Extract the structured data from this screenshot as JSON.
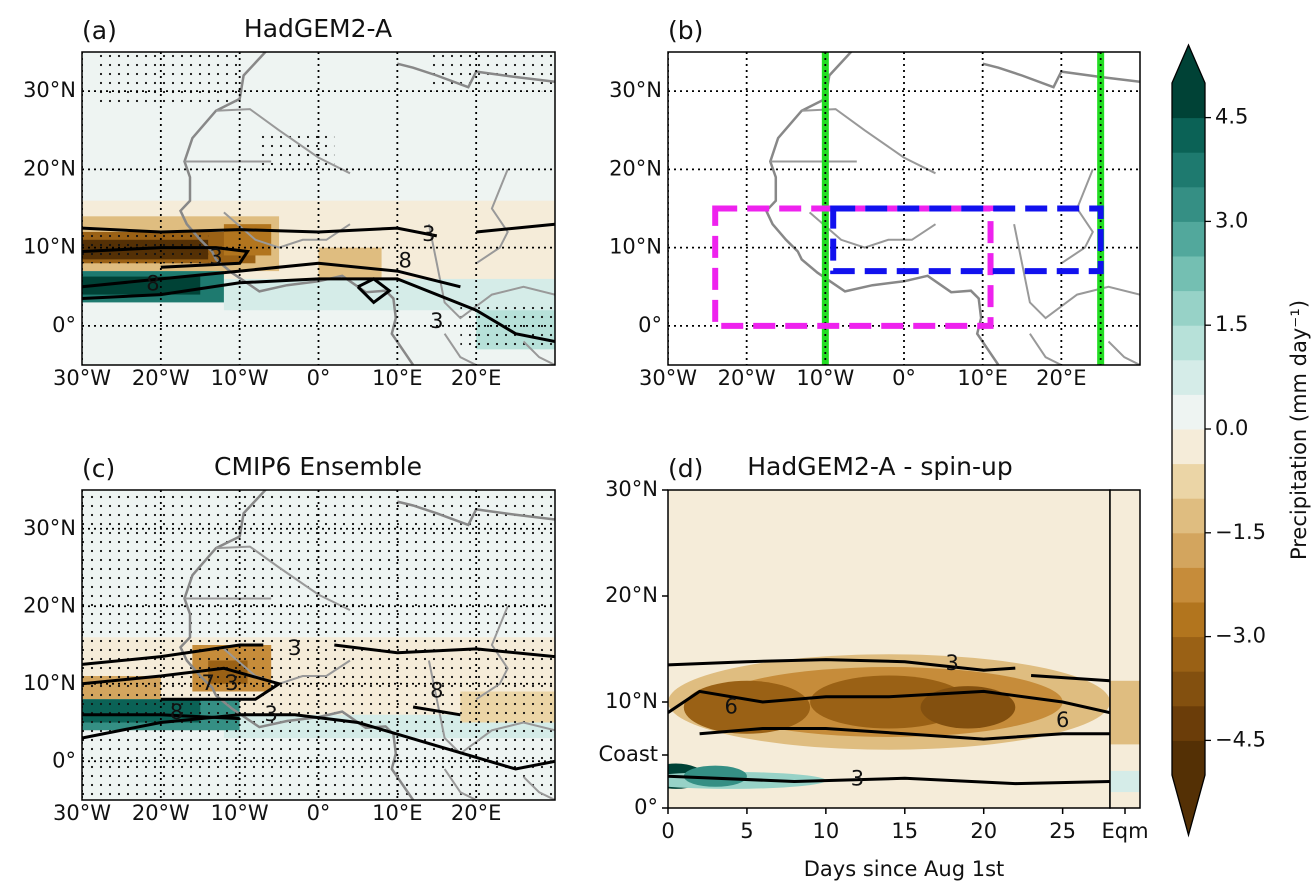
{
  "panels": [
    {
      "letter": "(a)",
      "title": "HadGEM2-A",
      "grid": true,
      "xlim": [
        -30,
        30
      ],
      "ylim": [
        -5,
        35
      ],
      "xticks": [
        {
          "value": -30,
          "label": "30°W"
        },
        {
          "value": -20,
          "label": "20°W"
        },
        {
          "value": -10,
          "label": "10°W"
        },
        {
          "value": 0,
          "label": "0°"
        },
        {
          "value": 10,
          "label": "10°E"
        },
        {
          "value": 20,
          "label": "20°E"
        }
      ],
      "yticks": [
        {
          "value": 0,
          "label": "0°"
        },
        {
          "value": 10,
          "label": "10°N"
        },
        {
          "value": 20,
          "label": "20°N"
        },
        {
          "value": 30,
          "label": "30°N"
        }
      ],
      "contour_labels": [
        "3",
        "3",
        "8",
        "8",
        "3"
      ]
    },
    {
      "letter": "(b)",
      "grid": true,
      "xlim": [
        -30,
        30
      ],
      "ylim": [
        -5,
        35
      ],
      "xticks": [
        {
          "value": -30,
          "label": "30°W"
        },
        {
          "value": -20,
          "label": "20°W"
        },
        {
          "value": -10,
          "label": "10°W"
        },
        {
          "value": 0,
          "label": "0°"
        },
        {
          "value": 10,
          "label": "10°E"
        },
        {
          "value": 20,
          "label": "20°E"
        }
      ],
      "yticks": [
        {
          "value": 0,
          "label": "0°"
        },
        {
          "value": 10,
          "label": "10°N"
        },
        {
          "value": 20,
          "label": "20°N"
        },
        {
          "value": 30,
          "label": "30°N"
        }
      ]
    },
    {
      "letter": "(c)",
      "title": "CMIP6 Ensemble",
      "grid": true,
      "xlim": [
        -30,
        30
      ],
      "ylim": [
        -5,
        35
      ],
      "xticks": [
        {
          "value": -30,
          "label": "30°W"
        },
        {
          "value": -20,
          "label": "20°W"
        },
        {
          "value": -10,
          "label": "10°W"
        },
        {
          "value": 0,
          "label": "0°"
        },
        {
          "value": 10,
          "label": "10°E"
        },
        {
          "value": 20,
          "label": "20°E"
        }
      ],
      "yticks": [
        {
          "value": 0,
          "label": "0°"
        },
        {
          "value": 10,
          "label": "10°N"
        },
        {
          "value": 20,
          "label": "20°N"
        },
        {
          "value": 30,
          "label": "30°N"
        }
      ],
      "contour_labels": [
        "3",
        "7",
        "3",
        "8",
        "3",
        "8"
      ]
    },
    {
      "letter": "(d)",
      "title": "HadGEM2-A - spin-up",
      "grid": false,
      "xlim": [
        0,
        28
      ],
      "ylim": [
        0,
        30
      ],
      "xticks": [
        0,
        5,
        10,
        15,
        20,
        25
      ],
      "yticks": [
        {
          "value": 0,
          "label": "0°"
        },
        {
          "value": 5,
          "label": "Coast"
        },
        {
          "value": 10,
          "label": "10°N"
        },
        {
          "value": 20,
          "label": "20°N"
        },
        {
          "value": 30,
          "label": "30°N"
        }
      ],
      "eqm_label": "Eqm",
      "xlabel": "Days since Aug 1st",
      "contour_labels": [
        "3",
        "6",
        "6",
        "3"
      ]
    }
  ],
  "colorbar": {
    "label": "Precipitation (mm day⁻¹)",
    "vlim": [
      -5,
      5
    ],
    "colors": [
      "#543005",
      "#6b3d09",
      "#83500f",
      "#9a6115",
      "#b2751e",
      "#c68c3a",
      "#d3a55e",
      "#dfbd80",
      "#ebd5a6",
      "#f5ecd9",
      "#eef4f2",
      "#d5ece8",
      "#b7e1d9",
      "#97d2c7",
      "#74bfb2",
      "#52a89c",
      "#358f84",
      "#1e7a6f",
      "#0b6256",
      "#004236"
    ],
    "ticks": [
      {
        "value": 4.5,
        "label": "4.5"
      },
      {
        "value": 3,
        "label": "3.0"
      },
      {
        "value": 1.5,
        "label": "1.5"
      },
      {
        "value": 0,
        "label": "0.0"
      },
      {
        "value": -1.5,
        "label": "−1.5"
      },
      {
        "value": -3,
        "label": "−3.0"
      },
      {
        "value": -4.5,
        "label": "−4.5"
      }
    ]
  }
}
